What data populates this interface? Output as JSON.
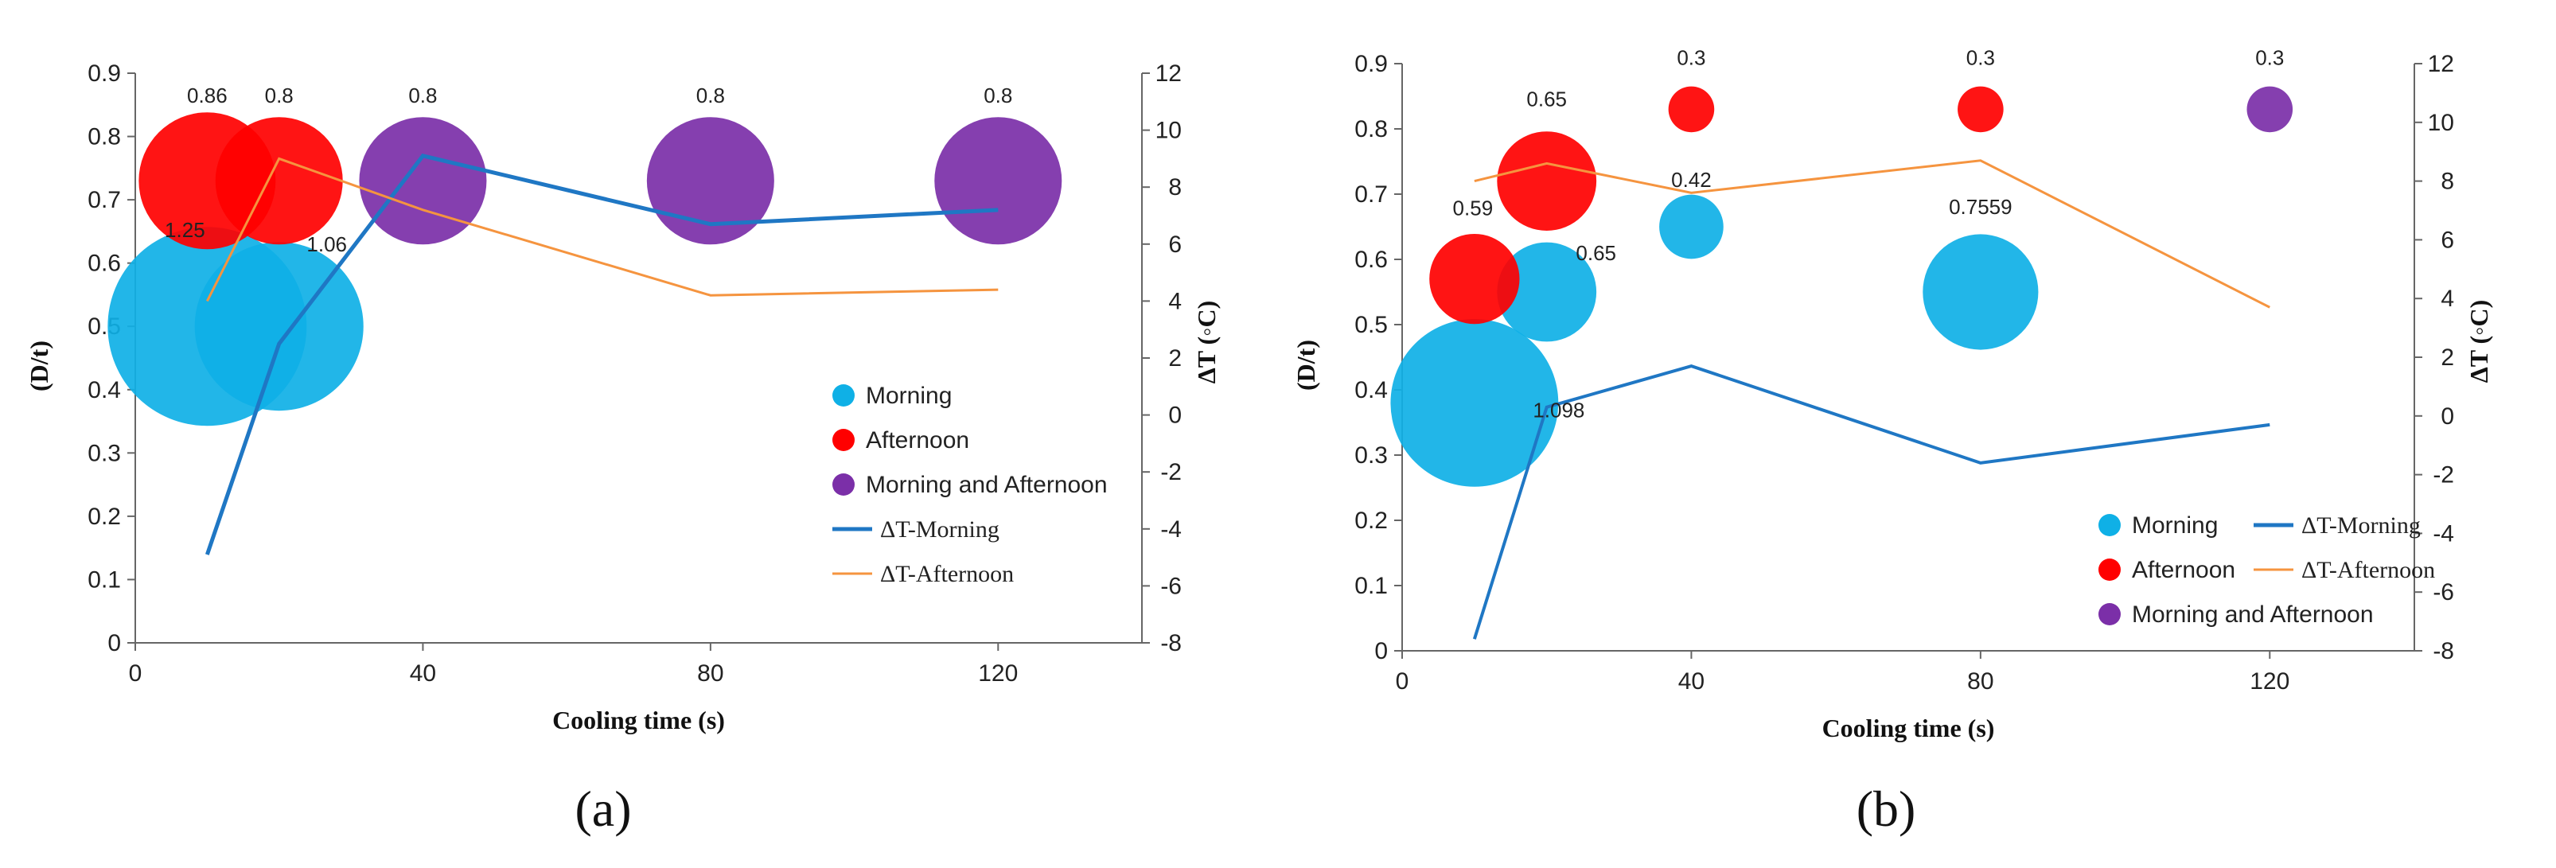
{
  "chart_data": [
    {
      "type": "bubble+line",
      "panel_label": "(a)",
      "xlabel": "Cooling time (s)",
      "ylabel": "(D/t)",
      "y2label": "ΔT (◦C)",
      "xlim": [
        0,
        140
      ],
      "xticks": [
        0,
        40,
        80,
        120
      ],
      "ylim": [
        0,
        0.9
      ],
      "yticks": [
        0,
        0.1,
        0.2,
        0.3,
        0.4,
        0.5,
        0.6,
        0.7,
        0.8,
        0.9
      ],
      "y2lim": [
        -8,
        12
      ],
      "y2ticks": [
        -8,
        -6,
        -4,
        -2,
        0,
        2,
        4,
        6,
        8,
        10,
        12
      ],
      "bubble_series": [
        {
          "name": "Morning",
          "color": "#0FB0E6",
          "points": [
            {
              "x": 10,
              "y": 0.5,
              "size": 1.25,
              "label": "1.25"
            },
            {
              "x": 20,
              "y": 0.5,
              "size": 1.06,
              "label": "1.06"
            }
          ]
        },
        {
          "name": "Afternoon",
          "color": "#FF0000",
          "points": [
            {
              "x": 10,
              "y": 0.73,
              "size": 0.86,
              "label": "0.86"
            },
            {
              "x": 20,
              "y": 0.73,
              "size": 0.8,
              "label": "0.8"
            }
          ]
        },
        {
          "name": "Morning and Afternoon",
          "color": "#7B2FA8",
          "points": [
            {
              "x": 40,
              "y": 0.73,
              "size": 0.8,
              "label": "0.8"
            },
            {
              "x": 80,
              "y": 0.73,
              "size": 0.8,
              "label": "0.8"
            },
            {
              "x": 120,
              "y": 0.73,
              "size": 0.8,
              "label": "0.8"
            }
          ]
        }
      ],
      "line_series": [
        {
          "name": "ΔT-Morning",
          "color": "#1F77C4",
          "width": 5,
          "x": [
            10,
            20,
            40,
            80,
            120
          ],
          "y": [
            -4.9,
            2.5,
            9.1,
            6.7,
            7.2
          ]
        },
        {
          "name": "ΔT-Afternoon",
          "color": "#F5943F",
          "width": 3,
          "x": [
            10,
            20,
            40,
            80,
            120
          ],
          "y": [
            4.0,
            9.0,
            7.2,
            4.2,
            4.4
          ]
        }
      ],
      "legend": [
        {
          "kind": "bubble",
          "name": "Morning",
          "color": "#0FB0E6"
        },
        {
          "kind": "bubble",
          "name": "Afternoon",
          "color": "#FF0000"
        },
        {
          "kind": "bubble",
          "name": "Morning and Afternoon",
          "color": "#7B2FA8"
        },
        {
          "kind": "line",
          "name": "ΔT-Morning",
          "color": "#1F77C4"
        },
        {
          "kind": "line",
          "name": "ΔT-Afternoon",
          "color": "#F5943F"
        }
      ]
    },
    {
      "type": "bubble+line",
      "panel_label": "(b)",
      "xlabel": "Cooling time (s)",
      "ylabel": "(D/t)",
      "y2label": "ΔT (◦C)",
      "xlim": [
        0,
        140
      ],
      "xticks": [
        0,
        40,
        80,
        120
      ],
      "ylim": [
        0,
        0.9
      ],
      "yticks": [
        0,
        0.1,
        0.2,
        0.3,
        0.4,
        0.5,
        0.6,
        0.7,
        0.8,
        0.9
      ],
      "y2lim": [
        -8,
        12
      ],
      "y2ticks": [
        -8,
        -6,
        -4,
        -2,
        0,
        2,
        4,
        6,
        8,
        10,
        12
      ],
      "bubble_series": [
        {
          "name": "Morning",
          "color": "#0FB0E6",
          "points": [
            {
              "x": 10,
              "y": 0.38,
              "size": 1.098,
              "label": "1.098"
            },
            {
              "x": 20,
              "y": 0.55,
              "size": 0.65,
              "label": "0.65"
            },
            {
              "x": 40,
              "y": 0.65,
              "size": 0.42,
              "label": "0.42"
            },
            {
              "x": 80,
              "y": 0.55,
              "size": 0.7559,
              "label": "0.7559"
            }
          ]
        },
        {
          "name": "Afternoon",
          "color": "#FF0000",
          "points": [
            {
              "x": 10,
              "y": 0.57,
              "size": 0.59,
              "label": "0.59"
            },
            {
              "x": 20,
              "y": 0.72,
              "size": 0.65,
              "label": "0.65"
            },
            {
              "x": 40,
              "y": 0.83,
              "size": 0.3,
              "label": "0.3"
            },
            {
              "x": 80,
              "y": 0.83,
              "size": 0.3,
              "label": "0.3"
            }
          ]
        },
        {
          "name": "Morning and Afternoon",
          "color": "#7B2FA8",
          "points": [
            {
              "x": 120,
              "y": 0.83,
              "size": 0.3,
              "label": "0.3"
            }
          ]
        }
      ],
      "line_series": [
        {
          "name": "ΔT-Morning",
          "color": "#1F77C4",
          "width": 4,
          "x": [
            10,
            20,
            40,
            80,
            120
          ],
          "y": [
            -7.6,
            0.3,
            1.7,
            -1.6,
            -0.3
          ]
        },
        {
          "name": "ΔT-Afternoon",
          "color": "#F5943F",
          "width": 3,
          "x": [
            10,
            20,
            40,
            80,
            120
          ],
          "y": [
            8.0,
            8.6,
            7.6,
            8.7,
            3.7
          ]
        }
      ],
      "legend": [
        {
          "kind": "bubble",
          "name": "Morning",
          "color": "#0FB0E6"
        },
        {
          "kind": "line",
          "name": "ΔT-Morning",
          "color": "#1F77C4"
        },
        {
          "kind": "bubble",
          "name": "Afternoon",
          "color": "#FF0000"
        },
        {
          "kind": "line",
          "name": "ΔT-Afternoon",
          "color": "#F5943F"
        },
        {
          "kind": "bubble",
          "name": "Morning and Afternoon",
          "color": "#7B2FA8"
        }
      ]
    }
  ]
}
